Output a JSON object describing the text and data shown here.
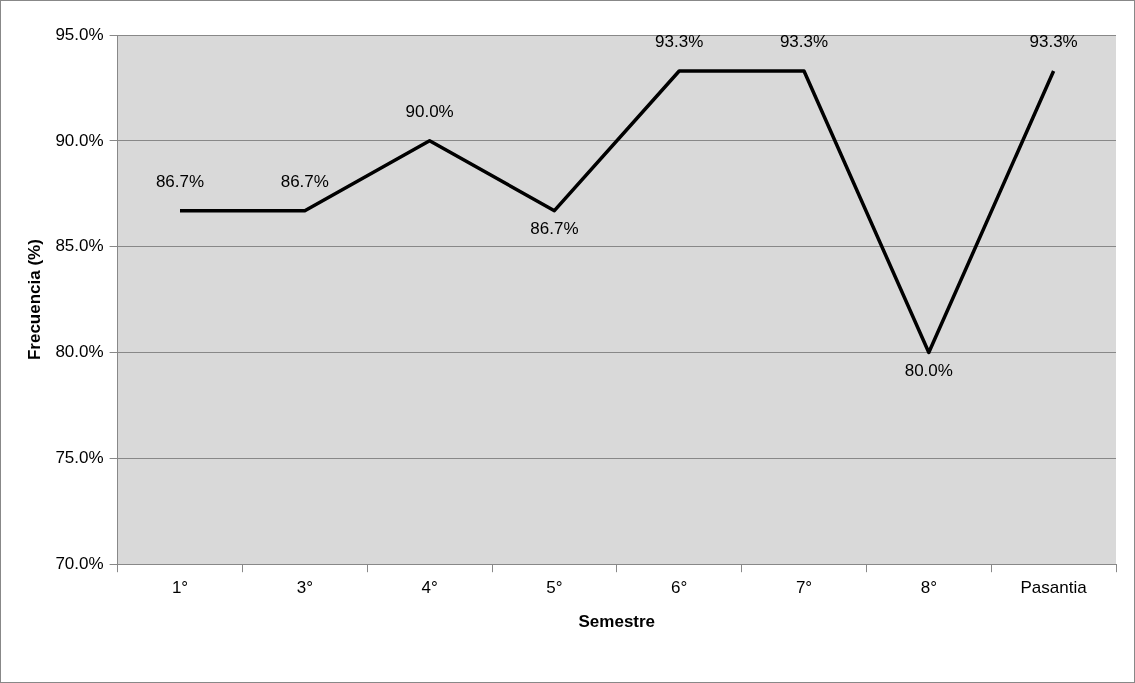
{
  "chart_data": {
    "type": "line",
    "xlabel": "Semestre",
    "ylabel": "Frecuencia (%)",
    "categories": [
      "1°",
      "3°",
      "4°",
      "5°",
      "6°",
      "7°",
      "8°",
      "Pasantia"
    ],
    "series": [
      {
        "color": "#000000",
        "values": [
          86.7,
          86.7,
          90.0,
          86.7,
          93.3,
          93.3,
          80.0,
          93.3
        ],
        "value_labels": [
          "86.7%",
          "86.7%",
          "90.0%",
          "86.7%",
          "93.3%",
          "93.3%",
          "80.0%",
          "93.3%"
        ]
      }
    ],
    "ylim": [
      70,
      95
    ],
    "yticks": [
      {
        "value": 70,
        "label": "70.0%"
      },
      {
        "value": 75,
        "label": "75.0%"
      },
      {
        "value": 80,
        "label": "80.0%"
      },
      {
        "value": 85,
        "label": "85.0%"
      },
      {
        "value": 90,
        "label": "90.0%"
      },
      {
        "value": 95,
        "label": "95.0%"
      }
    ],
    "grid": "y",
    "legend": false,
    "marker": "none",
    "line_style": "solid"
  }
}
